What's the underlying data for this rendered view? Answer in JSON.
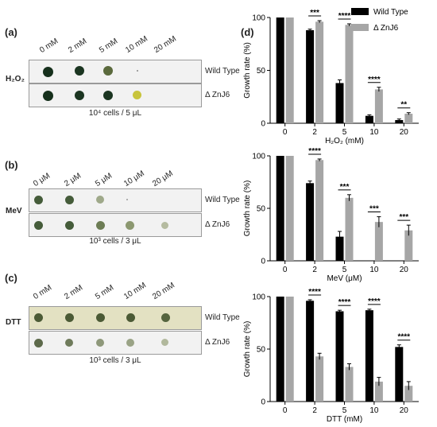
{
  "spot_assay": {
    "panels": [
      {
        "label": "(a)",
        "stress": "H₂O₂",
        "doses": [
          "0 mM",
          "2 mM",
          "5 mM",
          "10 mM",
          "20 mM"
        ],
        "rows": [
          "Wild Type",
          "Δ ZnJ6"
        ],
        "caption": "10⁴ cells / 5 μL"
      },
      {
        "label": "(b)",
        "stress": "MeV",
        "doses": [
          "0 μM",
          "2 μM",
          "5 μM",
          "10 μM",
          "20 μM"
        ],
        "rows": [
          "Wild Type",
          "Δ ZnJ6"
        ],
        "caption": "10³ cells / 3 μL"
      },
      {
        "label": "(c)",
        "stress": "DTT",
        "doses": [
          "0 mM",
          "2 mM",
          "5 mM",
          "10 mM",
          "20 mM"
        ],
        "rows": [
          "Wild Type",
          "Δ ZnJ6"
        ],
        "caption": "10³ cells / 3 μL"
      }
    ]
  },
  "panel_d_label": "(d)",
  "legend": {
    "placement": "top-right",
    "entries": [
      "Wild Type",
      "Δ ZnJ6"
    ]
  },
  "colors": {
    "wild_type": "#000000",
    "znj6": "#a6a6a6",
    "colony_dark": "#1f3a24"
  },
  "chart_data": [
    {
      "type": "bar",
      "categories": [
        "0",
        "2",
        "5",
        "10",
        "20"
      ],
      "xlabel": "H₂O₂ (mM)",
      "ylabel": "Growth rate (%)",
      "ylim": [
        0,
        100
      ],
      "yticks": [
        0,
        50,
        100
      ],
      "series": [
        {
          "name": "Wild Type",
          "values": [
            100,
            88,
            38,
            7,
            3
          ],
          "errors": [
            0,
            1,
            3,
            1,
            1
          ]
        },
        {
          "name": "Δ ZnJ6",
          "values": [
            100,
            96,
            93,
            32,
            9
          ],
          "errors": [
            0,
            1,
            1,
            2,
            1
          ]
        }
      ],
      "significance": [
        "",
        "***",
        "****",
        "****",
        "**"
      ]
    },
    {
      "type": "bar",
      "categories": [
        "0",
        "2",
        "5",
        "10",
        "20"
      ],
      "xlabel": "MeV (μM)",
      "ylabel": "Growth rate (%)",
      "ylim": [
        0,
        100
      ],
      "yticks": [
        0,
        50,
        100
      ],
      "series": [
        {
          "name": "Wild Type",
          "values": [
            100,
            74,
            23,
            0,
            0
          ],
          "errors": [
            0,
            2,
            5,
            0,
            0
          ]
        },
        {
          "name": "Δ ZnJ6",
          "values": [
            100,
            96,
            60,
            37,
            29
          ],
          "errors": [
            0,
            1,
            3,
            5,
            5
          ]
        }
      ],
      "significance": [
        "",
        "****",
        "***",
        "***",
        "***"
      ]
    },
    {
      "type": "bar",
      "categories": [
        "0",
        "2",
        "5",
        "10",
        "20"
      ],
      "xlabel": "DTT (mM)",
      "ylabel": "Growth rate (%)",
      "ylim": [
        0,
        100
      ],
      "yticks": [
        0,
        50,
        100
      ],
      "series": [
        {
          "name": "Wild Type",
          "values": [
            100,
            96,
            86,
            87,
            52
          ],
          "errors": [
            0,
            1,
            1,
            1,
            2
          ]
        },
        {
          "name": "Δ ZnJ6",
          "values": [
            100,
            43,
            33,
            19,
            15
          ],
          "errors": [
            0,
            3,
            3,
            4,
            4
          ]
        }
      ],
      "significance": [
        "",
        "****",
        "****",
        "****",
        "****"
      ]
    }
  ]
}
